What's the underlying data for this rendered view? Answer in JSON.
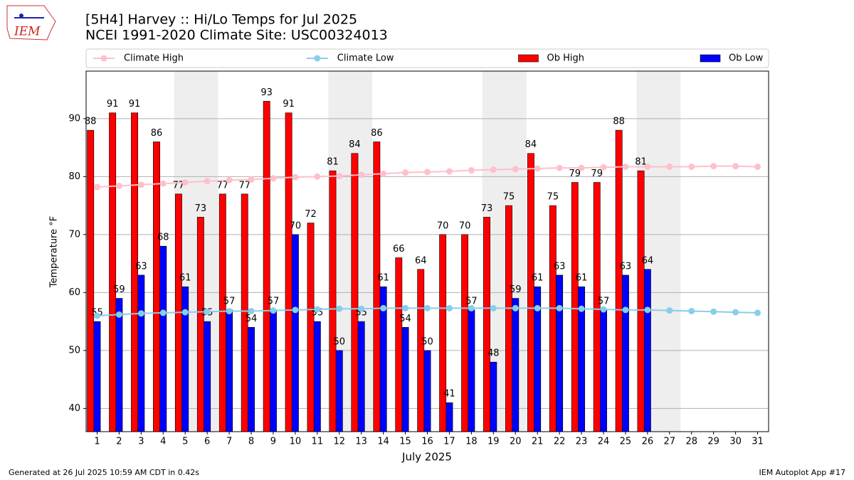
{
  "chart_data": {
    "type": "bar",
    "title": "[5H4] Harvey :: Hi/Lo Temps for Jul 2025",
    "subtitle": "NCEI 1991-2020 Climate Site: USC00324013",
    "logo_text": "IEM",
    "x_label": "July 2025",
    "y_label": "Temperature °F",
    "footer_left": "Generated at 26 Jul 2025 10:59 AM CDT in 0.42s",
    "footer_right": "IEM Autoplot App #17",
    "categories": [
      "1",
      "2",
      "3",
      "4",
      "5",
      "6",
      "7",
      "8",
      "9",
      "10",
      "11",
      "12",
      "13",
      "14",
      "15",
      "16",
      "17",
      "18",
      "19",
      "20",
      "21",
      "22",
      "23",
      "24",
      "25",
      "26",
      "27",
      "28",
      "29",
      "30",
      "31"
    ],
    "shaded": [
      [
        5,
        6
      ],
      [
        12,
        13
      ],
      [
        19,
        20
      ],
      [
        26,
        27
      ]
    ],
    "ylim": [
      36,
      98.2
    ],
    "yticks": [
      40,
      50,
      60,
      70,
      80,
      90
    ],
    "grid": true,
    "series": [
      {
        "name": "Climate High",
        "type": "line",
        "color": "#ffc0cb",
        "values": [
          78.2,
          78.4,
          78.6,
          78.8,
          79.0,
          79.2,
          79.4,
          79.5,
          79.7,
          79.9,
          80.0,
          80.1,
          80.3,
          80.5,
          80.7,
          80.8,
          80.9,
          81.1,
          81.2,
          81.3,
          81.4,
          81.5,
          81.5,
          81.6,
          81.7,
          81.7,
          81.7,
          81.7,
          81.8,
          81.8,
          81.7
        ]
      },
      {
        "name": "Climate Low",
        "type": "line",
        "color": "#87ceeb",
        "values": [
          56.0,
          56.2,
          56.4,
          56.5,
          56.6,
          56.7,
          56.8,
          56.8,
          56.9,
          57.0,
          57.1,
          57.2,
          57.2,
          57.3,
          57.3,
          57.3,
          57.3,
          57.3,
          57.3,
          57.3,
          57.3,
          57.3,
          57.2,
          57.1,
          57.0,
          57.0,
          56.9,
          56.8,
          56.7,
          56.6,
          56.5
        ]
      },
      {
        "name": "Ob High",
        "type": "bar",
        "color": "#ff0000",
        "values": [
          88,
          91,
          91,
          86,
          77,
          73,
          77,
          77,
          93,
          91,
          72,
          81,
          84,
          86,
          66,
          64,
          70,
          70,
          73,
          75,
          84,
          75,
          79,
          79,
          88,
          81,
          null,
          null,
          null,
          null,
          null
        ]
      },
      {
        "name": "Ob Low",
        "type": "bar",
        "color": "#0000ff",
        "values": [
          55,
          59,
          63,
          68,
          61,
          55,
          57,
          54,
          57,
          70,
          55,
          50,
          55,
          61,
          54,
          50,
          41,
          57,
          48,
          59,
          61,
          63,
          61,
          57,
          63,
          64,
          null,
          null,
          null,
          null,
          null
        ]
      }
    ]
  }
}
